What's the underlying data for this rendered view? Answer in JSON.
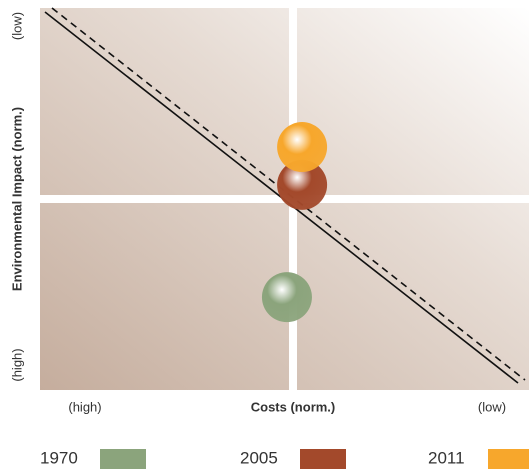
{
  "chart_data": {
    "type": "scatter",
    "xlabel": "Costs (norm.)",
    "ylabel": "Environmental Impact (norm.)",
    "xlim": [
      0,
      1
    ],
    "ylim": [
      0,
      1
    ],
    "xticks": [
      {
        "value": 0,
        "label": "(high)"
      },
      {
        "value": 1,
        "label": "(low)"
      }
    ],
    "yticks": [
      {
        "value": 0,
        "label": "(high)"
      },
      {
        "value": 1,
        "label": "(low)"
      }
    ],
    "series": [
      {
        "name": "1970",
        "color": "#8ba47c",
        "x": [
          0.505
        ],
        "values": [
          0.243
        ]
      },
      {
        "name": "2005",
        "color": "#a3492b",
        "x": [
          0.536
        ],
        "values": [
          0.537
        ]
      },
      {
        "name": "2011",
        "color": "#f7a72c",
        "x": [
          0.536
        ],
        "values": [
          0.636
        ]
      }
    ]
  }
}
